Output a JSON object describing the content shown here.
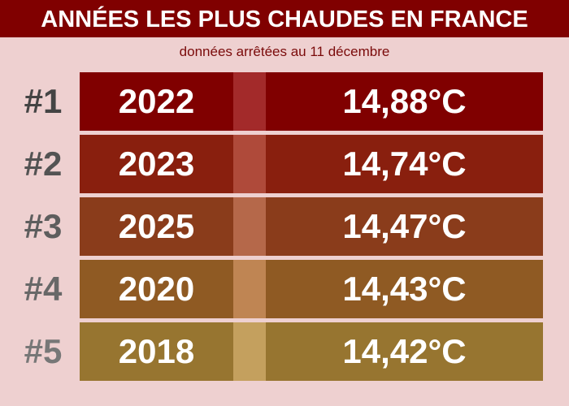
{
  "title": "ANNÉES LES PLUS CHAUDES EN FRANCE",
  "subtitle": "données arrêtées au 11 décembre",
  "chart_data": {
    "type": "table",
    "title": "ANNÉES LES PLUS CHAUDES EN FRANCE",
    "subtitle": "données arrêtées au 11 décembre",
    "rows": [
      {
        "rank": "#1",
        "year": "2022",
        "temp": "14,88°C",
        "value": 14.88,
        "color": "#800000",
        "stripe": "#a32a2a",
        "rank_color": "#444444"
      },
      {
        "rank": "#2",
        "year": "2023",
        "temp": "14,74°C",
        "value": 14.74,
        "color": "#891f0e",
        "stripe": "#af4a3a",
        "rank_color": "#535353"
      },
      {
        "rank": "#3",
        "year": "2025",
        "temp": "14,47°C",
        "value": 14.47,
        "color": "#8a3c1b",
        "stripe": "#b5684a",
        "rank_color": "#5e5e5e"
      },
      {
        "rank": "#4",
        "year": "2020",
        "temp": "14,43°C",
        "value": 14.43,
        "color": "#8f5a23",
        "stripe": "#bf8553",
        "rank_color": "#686868"
      },
      {
        "rank": "#5",
        "year": "2018",
        "temp": "14,42°C",
        "value": 14.42,
        "color": "#977530",
        "stripe": "#c4a05e",
        "rank_color": "#777777"
      }
    ]
  }
}
